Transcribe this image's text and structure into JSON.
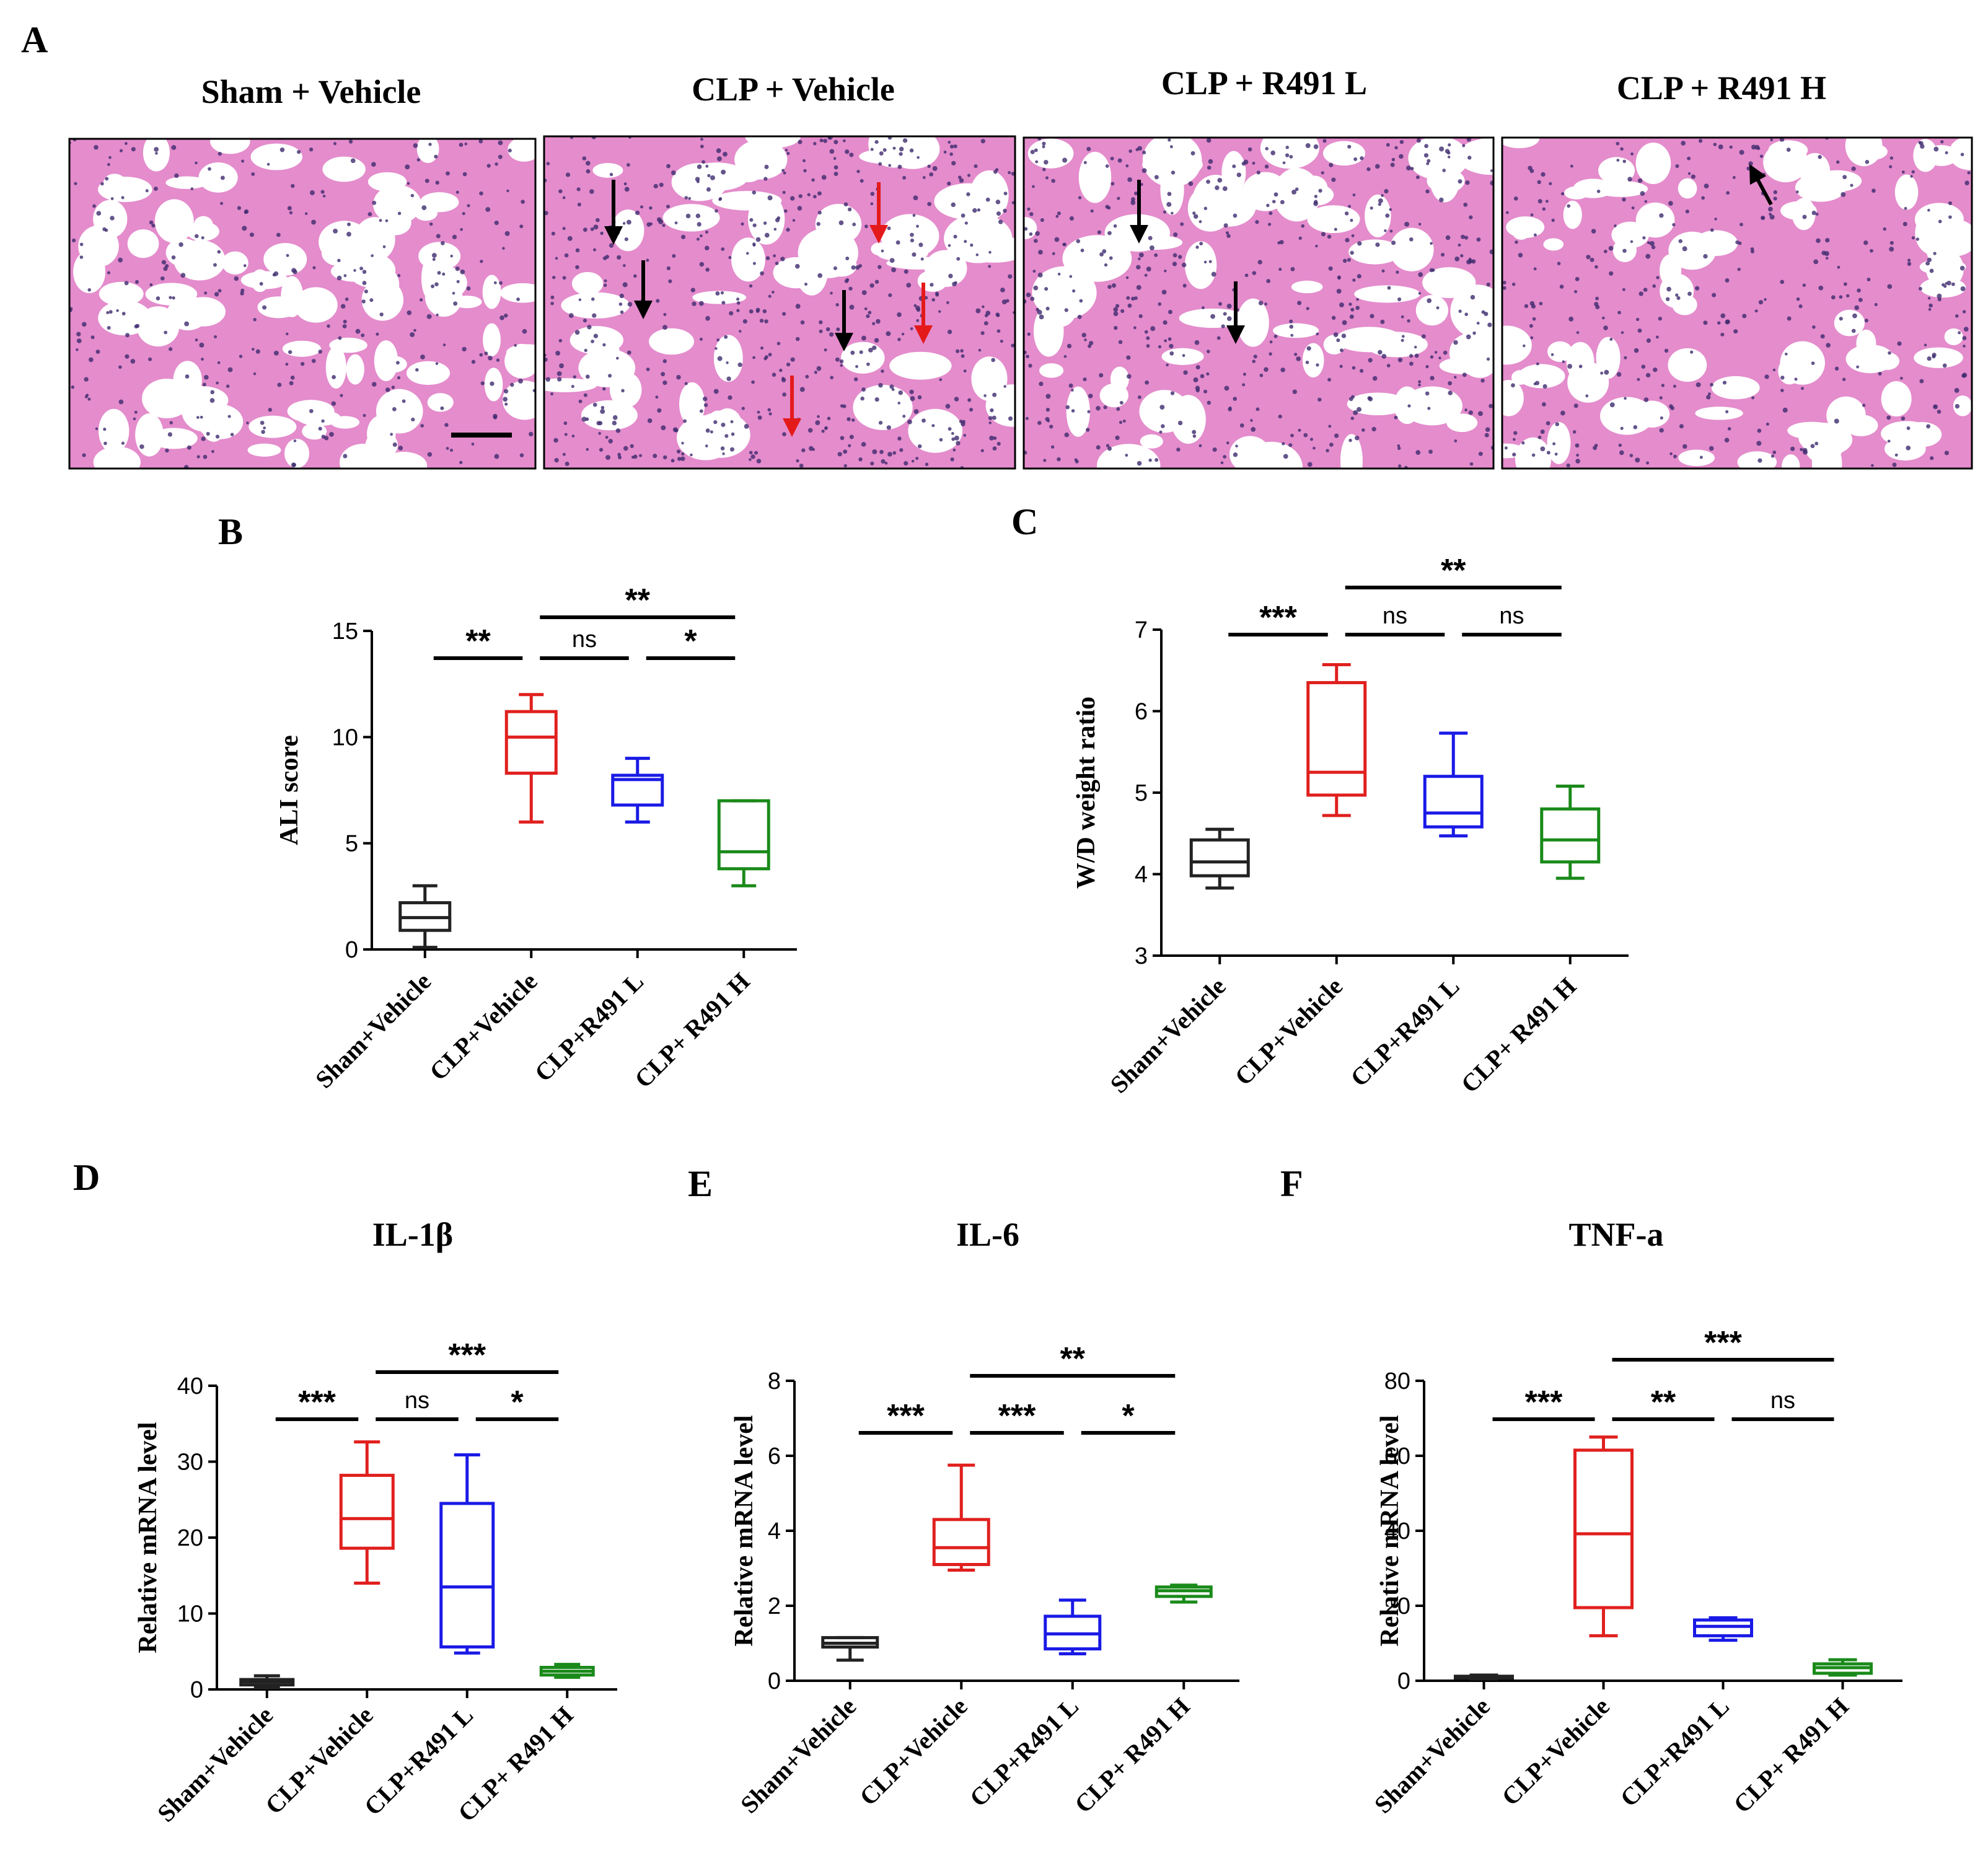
{
  "figure": {
    "panel_letters": {
      "A": "A",
      "B": "B",
      "C": "C",
      "D": "D",
      "E": "E",
      "F": "F"
    },
    "histology": {
      "titles": [
        "Sham + Vehicle",
        "CLP + Vehicle",
        "CLP + R491 L",
        "CLP + R491 H"
      ],
      "tissue_color": "#e48ccc",
      "nucleus_color": "#3d2a6e",
      "black_arrow_counts": [
        0,
        3,
        2,
        1
      ],
      "red_arrow_counts": [
        0,
        3,
        0,
        0
      ]
    }
  },
  "colors": {
    "group_colors": [
      "#222222",
      "#e0201e",
      "#1a1ae6",
      "#1a8a1a"
    ]
  },
  "chart_data": [
    {
      "id": "B",
      "type": "boxplot",
      "title": "",
      "ylabel": "ALI score",
      "xlabel": "",
      "ylim": [
        0,
        15
      ],
      "yticks": [
        "0",
        "5",
        "10",
        "15"
      ],
      "categories": [
        "Sham+Vehicle",
        "CLP+Vehicle",
        "CLP+R491 L",
        "CLP+ R491 H"
      ],
      "boxes": [
        {
          "min": 0.1,
          "q1": 0.9,
          "median": 1.5,
          "q3": 2.2,
          "max": 3.0
        },
        {
          "min": 6.0,
          "q1": 8.3,
          "median": 10.0,
          "q3": 11.2,
          "max": 12.0
        },
        {
          "min": 6.0,
          "q1": 6.8,
          "median": 8.0,
          "q3": 8.2,
          "max": 9.0
        },
        {
          "min": 3.0,
          "q1": 3.8,
          "median": 4.6,
          "q3": 7.0,
          "max": 7.0
        }
      ],
      "significance": [
        {
          "from": 0,
          "to": 1,
          "level": 0,
          "label": "**"
        },
        {
          "from": 1,
          "to": 2,
          "level": 0,
          "label": "ns"
        },
        {
          "from": 2,
          "to": 3,
          "level": 0,
          "label": "*"
        },
        {
          "from": 1,
          "to": 3,
          "level": 1,
          "label": "**"
        }
      ]
    },
    {
      "id": "C",
      "type": "boxplot",
      "title": "",
      "ylabel": "W/D weight ratio",
      "xlabel": "",
      "ylim": [
        3,
        7
      ],
      "yticks": [
        "3",
        "4",
        "5",
        "6",
        "7"
      ],
      "categories": [
        "Sham+Vehicle",
        "CLP+Vehicle",
        "CLP+R491 L",
        "CLP+ R491 H"
      ],
      "boxes": [
        {
          "min": 3.83,
          "q1": 3.98,
          "median": 4.15,
          "q3": 4.42,
          "max": 4.55
        },
        {
          "min": 4.72,
          "q1": 4.97,
          "median": 5.25,
          "q3": 6.35,
          "max": 6.57
        },
        {
          "min": 4.47,
          "q1": 4.58,
          "median": 4.75,
          "q3": 5.2,
          "max": 5.73
        },
        {
          "min": 3.95,
          "q1": 4.15,
          "median": 4.42,
          "q3": 4.8,
          "max": 5.08
        }
      ],
      "significance": [
        {
          "from": 0,
          "to": 1,
          "level": 0,
          "label": "***"
        },
        {
          "from": 1,
          "to": 2,
          "level": 0,
          "label": "ns"
        },
        {
          "from": 2,
          "to": 3,
          "level": 0,
          "label": "ns"
        },
        {
          "from": 1,
          "to": 3,
          "level": 1,
          "label": "**"
        }
      ]
    },
    {
      "id": "D",
      "type": "boxplot",
      "title": "IL-1β",
      "ylabel": "Relative mRNA level",
      "xlabel": "",
      "ylim": [
        0,
        40
      ],
      "yticks": [
        "0",
        "10",
        "20",
        "30",
        "40"
      ],
      "categories": [
        "Sham+Vehicle",
        "CLP+Vehicle",
        "CLP+R491 L",
        "CLP+ R491 H"
      ],
      "boxes": [
        {
          "min": 0.2,
          "q1": 0.6,
          "median": 1.0,
          "q3": 1.3,
          "max": 1.8
        },
        {
          "min": 14.0,
          "q1": 18.6,
          "median": 22.5,
          "q3": 28.2,
          "max": 32.6
        },
        {
          "min": 4.8,
          "q1": 5.6,
          "median": 13.5,
          "q3": 24.5,
          "max": 30.9
        },
        {
          "min": 1.6,
          "q1": 1.9,
          "median": 2.4,
          "q3": 2.9,
          "max": 3.3
        }
      ],
      "significance": [
        {
          "from": 0,
          "to": 1,
          "level": 0,
          "label": "***"
        },
        {
          "from": 1,
          "to": 2,
          "level": 0,
          "label": "ns"
        },
        {
          "from": 2,
          "to": 3,
          "level": 0,
          "label": "*"
        },
        {
          "from": 1,
          "to": 3,
          "level": 1,
          "label": "***"
        }
      ]
    },
    {
      "id": "E",
      "type": "boxplot",
      "title": "IL-6",
      "ylabel": "Relative mRNA level",
      "xlabel": "",
      "ylim": [
        0,
        8
      ],
      "yticks": [
        "0",
        "2",
        "4",
        "6",
        "8"
      ],
      "categories": [
        "Sham+Vehicle",
        "CLP+Vehicle",
        "CLP+R491 L",
        "CLP+ R491 H"
      ],
      "boxes": [
        {
          "min": 0.55,
          "q1": 0.9,
          "median": 1.0,
          "q3": 1.15,
          "max": 1.15
        },
        {
          "min": 2.95,
          "q1": 3.1,
          "median": 3.55,
          "q3": 4.3,
          "max": 5.75
        },
        {
          "min": 0.72,
          "q1": 0.85,
          "median": 1.25,
          "q3": 1.72,
          "max": 2.15
        },
        {
          "min": 2.1,
          "q1": 2.25,
          "median": 2.4,
          "q3": 2.5,
          "max": 2.55
        }
      ],
      "significance": [
        {
          "from": 0,
          "to": 1,
          "level": 0,
          "label": "***"
        },
        {
          "from": 1,
          "to": 2,
          "level": 0,
          "label": "***"
        },
        {
          "from": 2,
          "to": 3,
          "level": 0,
          "label": "*"
        },
        {
          "from": 1,
          "to": 3,
          "level": 1,
          "label": "**"
        }
      ]
    },
    {
      "id": "F",
      "type": "boxplot",
      "title": "TNF-a",
      "ylabel": "Relative mRNA level",
      "xlabel": "",
      "ylim": [
        0,
        80
      ],
      "yticks": [
        "0",
        "20",
        "40",
        "60",
        "80"
      ],
      "categories": [
        "Sham+Vehicle",
        "CLP+Vehicle",
        "CLP+R491 L",
        "CLP+ R491 H"
      ],
      "boxes": [
        {
          "min": 0.5,
          "q1": 0.8,
          "median": 1.0,
          "q3": 1.2,
          "max": 1.5
        },
        {
          "min": 12.0,
          "q1": 19.5,
          "median": 39.2,
          "q3": 61.5,
          "max": 65.0
        },
        {
          "min": 10.8,
          "q1": 12.0,
          "median": 14.5,
          "q3": 16.2,
          "max": 16.8
        },
        {
          "min": 1.5,
          "q1": 2.0,
          "median": 3.5,
          "q3": 4.5,
          "max": 5.6
        }
      ],
      "significance": [
        {
          "from": 0,
          "to": 1,
          "level": 0,
          "label": "***"
        },
        {
          "from": 1,
          "to": 2,
          "level": 0,
          "label": "**"
        },
        {
          "from": 2,
          "to": 3,
          "level": 0,
          "label": "ns"
        },
        {
          "from": 1,
          "to": 3,
          "level": 1,
          "label": "***"
        }
      ]
    }
  ]
}
